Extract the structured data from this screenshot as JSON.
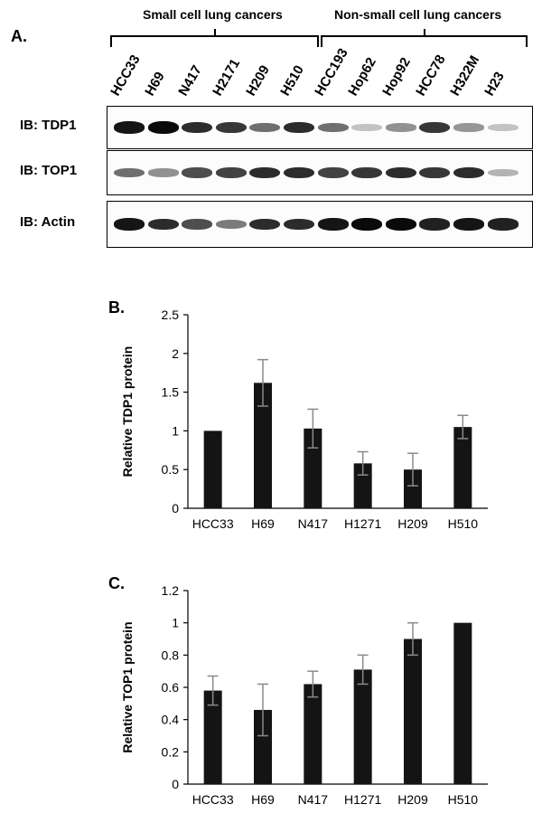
{
  "figure_a": {
    "panel_label": "A.",
    "groups": [
      {
        "label": "Small cell lung cancers",
        "lane_count": 6
      },
      {
        "label": "Non-small cell lung cancers",
        "lane_count": 6
      }
    ],
    "lanes": [
      "HCC33",
      "H69",
      "N417",
      "H2171",
      "H209",
      "H510",
      "HCC193",
      "Hop62",
      "Hop92",
      "HCC78",
      "H322M",
      "H23"
    ],
    "blots": [
      {
        "label": "IB: TDP1",
        "intensities": [
          0.95,
          1.0,
          0.85,
          0.8,
          0.55,
          0.85,
          0.55,
          0.18,
          0.4,
          0.8,
          0.38,
          0.18
        ]
      },
      {
        "label": "IB: TOP1",
        "intensities": [
          0.55,
          0.4,
          0.7,
          0.75,
          0.85,
          0.85,
          0.75,
          0.8,
          0.85,
          0.8,
          0.85,
          0.25
        ]
      },
      {
        "label": "IB: Actin",
        "intensities": [
          0.95,
          0.85,
          0.7,
          0.5,
          0.85,
          0.85,
          0.95,
          1.0,
          1.0,
          0.9,
          0.95,
          0.9
        ]
      }
    ]
  },
  "chart_data": [
    {
      "panel_label": "B.",
      "type": "bar",
      "categories": [
        "HCC33",
        "H69",
        "N417",
        "H1271",
        "H209",
        "H510"
      ],
      "values": [
        1.0,
        1.62,
        1.03,
        0.58,
        0.5,
        1.05
      ],
      "errors": [
        0,
        0.3,
        0.25,
        0.15,
        0.21,
        0.15
      ],
      "ylabel": "Relative TDP1 protein",
      "xlabel": "",
      "ylim": [
        0,
        2.5
      ],
      "yticks": [
        "0",
        "0.5",
        "1",
        "1.5",
        "2",
        "2.5"
      ],
      "ytick_values": [
        0,
        0.5,
        1,
        1.5,
        2,
        2.5
      ],
      "bar_color": "#141414",
      "error_color": "#8a8a8a"
    },
    {
      "panel_label": "C.",
      "type": "bar",
      "categories": [
        "HCC33",
        "H69",
        "N417",
        "H1271",
        "H209",
        "H510"
      ],
      "values": [
        0.58,
        0.46,
        0.62,
        0.71,
        0.9,
        1.0
      ],
      "errors": [
        0.09,
        0.16,
        0.08,
        0.09,
        0.1,
        0
      ],
      "ylabel": "Relative TOP1 protein",
      "xlabel": "",
      "ylim": [
        0,
        1.2
      ],
      "yticks": [
        "0",
        "0.2",
        "0.4",
        "0.6",
        "0.8",
        "1",
        "1.2"
      ],
      "ytick_values": [
        0,
        0.2,
        0.4,
        0.6,
        0.8,
        1,
        1.2
      ],
      "bar_color": "#141414",
      "error_color": "#8a8a8a"
    }
  ]
}
